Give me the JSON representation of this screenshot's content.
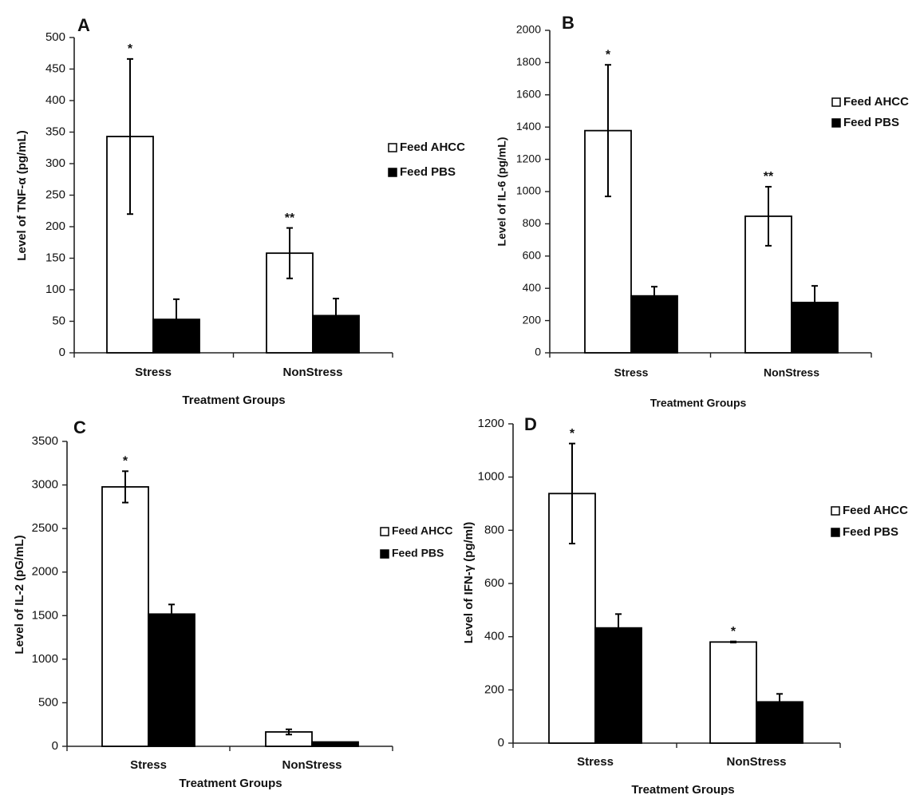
{
  "chart_data": [
    {
      "panel_label": "A",
      "type": "bar",
      "ylabel": "Level of TNF-α (pg/mL)",
      "xlabel": "Treatment Groups",
      "categories": [
        "Stress",
        "NonStress"
      ],
      "ylim": [
        0,
        500
      ],
      "yticks": [
        0,
        50,
        100,
        150,
        200,
        250,
        300,
        350,
        400,
        450,
        500
      ],
      "series": [
        {
          "name": "Feed AHCC",
          "fill": "#ffffff",
          "values": [
            343,
            158
          ],
          "errors": [
            123,
            40
          ],
          "annotations": [
            "*",
            "**"
          ]
        },
        {
          "name": "Feed PBS",
          "fill": "#000000",
          "values": [
            53,
            59
          ],
          "errors": [
            32,
            27
          ],
          "annotations": [
            "",
            ""
          ]
        }
      ],
      "legend": "right"
    },
    {
      "panel_label": "B",
      "type": "bar",
      "ylabel": "Level of IL-6 (pg/mL)",
      "xlabel": "Treatment Groups",
      "categories": [
        "Stress",
        "NonStress"
      ],
      "ylim": [
        0,
        2000
      ],
      "yticks": [
        0,
        200,
        400,
        600,
        800,
        1000,
        1200,
        1400,
        1600,
        1800,
        2000
      ],
      "series": [
        {
          "name": "Feed AHCC",
          "fill": "#ffffff",
          "values": [
            1378,
            847
          ],
          "errors": [
            408,
            183
          ],
          "annotations": [
            "*",
            "**"
          ]
        },
        {
          "name": "Feed PBS",
          "fill": "#000000",
          "values": [
            353,
            312
          ],
          "errors": [
            57,
            103
          ],
          "annotations": [
            "",
            ""
          ]
        }
      ],
      "legend": "right"
    },
    {
      "panel_label": "C",
      "type": "bar",
      "ylabel": "Level of IL-2 (pG/mL)",
      "xlabel": "Treatment Groups",
      "categories": [
        "Stress",
        "NonStress"
      ],
      "ylim": [
        0,
        3500
      ],
      "yticks": [
        0,
        500,
        1000,
        1500,
        2000,
        2500,
        3000,
        3500
      ],
      "series": [
        {
          "name": "Feed AHCC",
          "fill": "#ffffff",
          "values": [
            2978,
            165
          ],
          "errors": [
            180,
            30
          ],
          "annotations": [
            "*",
            ""
          ]
        },
        {
          "name": "Feed PBS",
          "fill": "#000000",
          "values": [
            1518,
            50
          ],
          "errors": [
            110,
            0
          ],
          "annotations": [
            "",
            ""
          ]
        }
      ],
      "legend": "right"
    },
    {
      "panel_label": "D",
      "type": "bar",
      "ylabel": "Level of IFN-γ (pg/ml)",
      "xlabel": "Treatment Groups",
      "categories": [
        "Stress",
        "NonStress"
      ],
      "ylim": [
        0,
        1200
      ],
      "yticks": [
        0,
        200,
        400,
        600,
        800,
        1000,
        1200
      ],
      "series": [
        {
          "name": "Feed AHCC",
          "fill": "#ffffff",
          "values": [
            938,
            380
          ],
          "errors": [
            188,
            2
          ],
          "annotations": [
            "*",
            "*"
          ]
        },
        {
          "name": "Feed PBS",
          "fill": "#000000",
          "values": [
            433,
            155
          ],
          "errors": [
            52,
            30
          ],
          "annotations": [
            "",
            ""
          ]
        }
      ],
      "legend": "right"
    }
  ]
}
